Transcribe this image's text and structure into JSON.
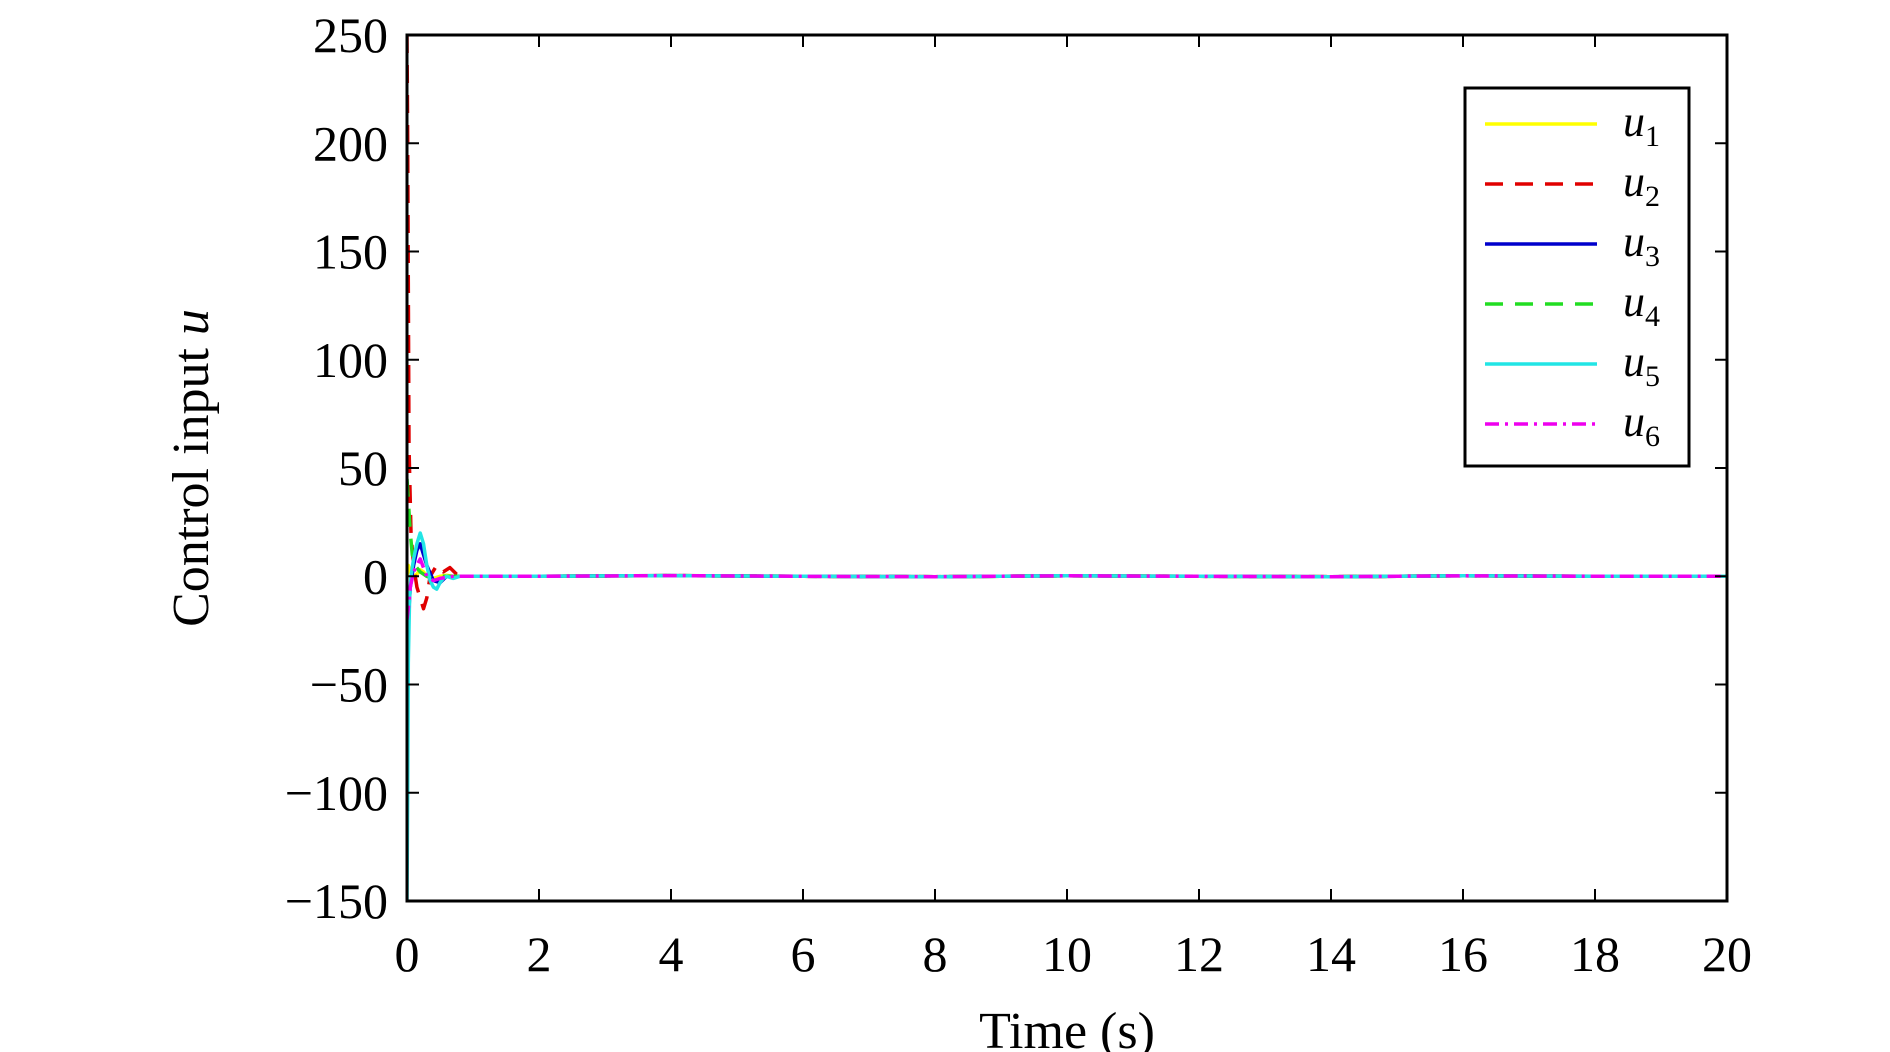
{
  "chart_data": {
    "type": "line",
    "xlabel": "Time (s)",
    "ylabel_main": "Control input ",
    "ylabel_var": "u",
    "xlim": [
      0,
      20
    ],
    "ylim": [
      -150,
      250
    ],
    "xticks": [
      0,
      2,
      4,
      6,
      8,
      10,
      12,
      14,
      16,
      18,
      20
    ],
    "yticks": [
      -150,
      -100,
      -50,
      0,
      50,
      100,
      150,
      200,
      250
    ],
    "grid": false,
    "legend_position": "top-right",
    "series": [
      {
        "name": "u",
        "sub": "1",
        "color": "#ffff00",
        "dash": "solid",
        "x": [
          0,
          0.02,
          0.05,
          0.1,
          0.15,
          0.2,
          0.25,
          0.3,
          0.4,
          0.5,
          0.6,
          0.7,
          0.8,
          1.0,
          2,
          4,
          6,
          8,
          10,
          12,
          14,
          16,
          18,
          20
        ],
        "y": [
          0,
          5,
          2,
          0,
          1,
          3,
          2,
          0,
          -1,
          0,
          0.5,
          0,
          0,
          0,
          0,
          0.3,
          0,
          -0.2,
          0.2,
          0,
          -0.2,
          0.2,
          0,
          0
        ]
      },
      {
        "name": "u",
        "sub": "2",
        "color": "#e00000",
        "dash": "dashed",
        "x": [
          0,
          0.01,
          0.03,
          0.06,
          0.1,
          0.15,
          0.2,
          0.25,
          0.3,
          0.35,
          0.45,
          0.55,
          0.65,
          0.75,
          0.85,
          1.0,
          2,
          4,
          6,
          8,
          10,
          12,
          14,
          16,
          18,
          20
        ],
        "y": [
          250,
          200,
          60,
          20,
          5,
          -5,
          -10,
          -15,
          -10,
          0,
          5,
          2,
          4,
          1,
          0,
          0,
          0,
          0.3,
          0,
          -0.2,
          0.2,
          0,
          -0.2,
          0.2,
          0,
          0
        ]
      },
      {
        "name": "u",
        "sub": "3",
        "color": "#0000cc",
        "dash": "solid",
        "x": [
          0,
          0.02,
          0.05,
          0.1,
          0.15,
          0.2,
          0.25,
          0.3,
          0.4,
          0.5,
          0.6,
          0.8,
          1.0,
          2,
          4,
          6,
          8,
          10,
          12,
          14,
          16,
          18,
          20
        ],
        "y": [
          -30,
          -20,
          -5,
          5,
          12,
          15,
          10,
          5,
          -2,
          -3,
          0,
          0,
          0,
          0,
          0.3,
          0,
          -0.2,
          0.2,
          0,
          -0.2,
          0.2,
          0,
          0
        ]
      },
      {
        "name": "u",
        "sub": "4",
        "color": "#22dd22",
        "dash": "dashed",
        "x": [
          0,
          0.02,
          0.05,
          0.08,
          0.12,
          0.2,
          0.3,
          0.4,
          0.5,
          0.7,
          1.0,
          2,
          4,
          6,
          8,
          10,
          12,
          14,
          16,
          18,
          20
        ],
        "y": [
          45,
          35,
          20,
          10,
          5,
          2,
          0,
          -1,
          0,
          0,
          0,
          0,
          0.3,
          0,
          -0.2,
          0.2,
          0,
          -0.2,
          0.2,
          0,
          0
        ]
      },
      {
        "name": "u",
        "sub": "5",
        "color": "#22e5e5",
        "dash": "solid",
        "x": [
          0,
          0.01,
          0.02,
          0.04,
          0.06,
          0.1,
          0.15,
          0.2,
          0.25,
          0.3,
          0.35,
          0.4,
          0.45,
          0.5,
          0.55,
          0.6,
          0.7,
          0.8,
          1.0,
          2,
          4,
          6,
          8,
          10,
          12,
          14,
          16,
          18,
          20
        ],
        "y": [
          -150,
          -100,
          -40,
          -10,
          0,
          8,
          15,
          20,
          15,
          5,
          -2,
          -5,
          -6,
          -3,
          -1,
          0,
          -1,
          0,
          0,
          0,
          0.3,
          0,
          -0.2,
          0.2,
          0,
          -0.2,
          0.2,
          0,
          0
        ]
      },
      {
        "name": "u",
        "sub": "6",
        "color": "#ee00ee",
        "dash": "dashdot",
        "x": [
          0,
          0.02,
          0.05,
          0.1,
          0.15,
          0.2,
          0.25,
          0.3,
          0.4,
          0.5,
          0.7,
          1.0,
          2,
          4,
          6,
          8,
          10,
          12,
          14,
          16,
          18,
          20
        ],
        "y": [
          -20,
          -15,
          -5,
          2,
          5,
          8,
          4,
          0,
          -2,
          -1,
          0,
          0,
          0,
          0.3,
          0,
          -0.2,
          0.2,
          0,
          -0.2,
          0.2,
          0,
          0
        ]
      }
    ]
  }
}
